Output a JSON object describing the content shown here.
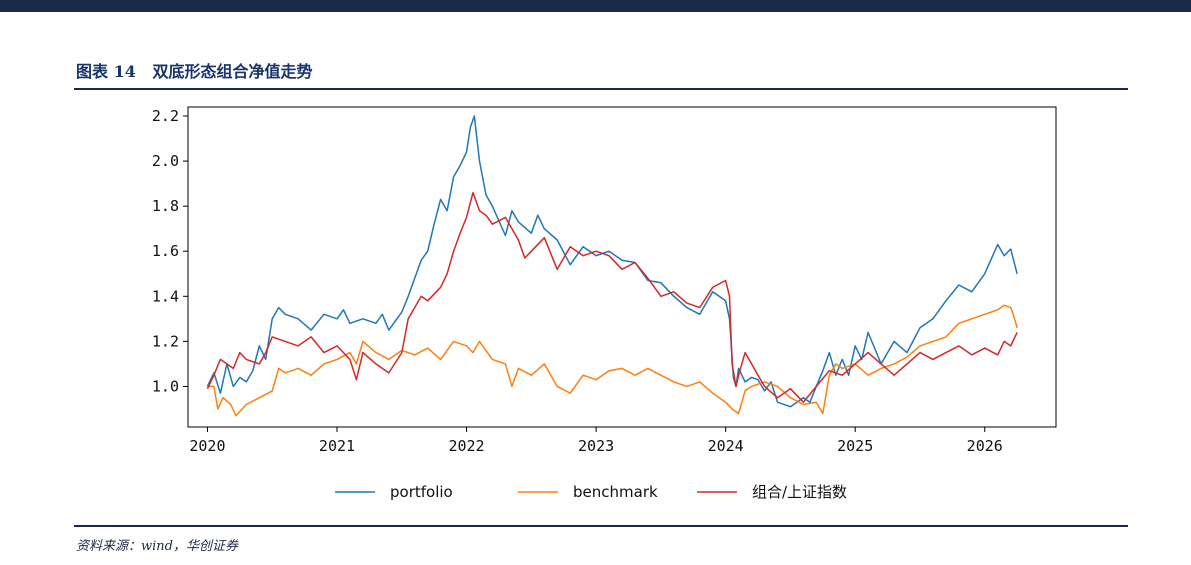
{
  "figure": {
    "title": "图表 14   双底形态组合净值走势",
    "source": "资料来源：wind，华创证券"
  },
  "chart_data": {
    "type": "line",
    "xlim": [
      2019.85,
      2026.55
    ],
    "ylim": [
      0.82,
      2.24
    ],
    "x_ticks": [
      2020,
      2021,
      2022,
      2023,
      2024,
      2025,
      2026
    ],
    "x_tick_labels": [
      "2020",
      "2021",
      "2022",
      "2023",
      "2024",
      "2025",
      "2026"
    ],
    "y_ticks": [
      1.0,
      1.2,
      1.4,
      1.6,
      1.8,
      2.0,
      2.2
    ],
    "y_tick_labels": [
      "1.0",
      "1.2",
      "1.4",
      "1.6",
      "1.8",
      "2.0",
      "2.2"
    ],
    "grid": false,
    "legend_position": "bottom",
    "series": [
      {
        "name": "portfolio",
        "color": "#1f77b4",
        "x": [
          2020.0,
          2020.05,
          2020.1,
          2020.15,
          2020.2,
          2020.25,
          2020.3,
          2020.35,
          2020.4,
          2020.45,
          2020.5,
          2020.55,
          2020.6,
          2020.7,
          2020.8,
          2020.9,
          2021.0,
          2021.05,
          2021.1,
          2021.2,
          2021.3,
          2021.35,
          2021.4,
          2021.5,
          2021.55,
          2021.6,
          2021.65,
          2021.7,
          2021.75,
          2021.8,
          2021.85,
          2021.9,
          2021.95,
          2022.0,
          2022.03,
          2022.06,
          2022.1,
          2022.15,
          2022.2,
          2022.3,
          2022.35,
          2022.4,
          2022.5,
          2022.55,
          2022.6,
          2022.7,
          2022.8,
          2022.9,
          2023.0,
          2023.1,
          2023.2,
          2023.3,
          2023.4,
          2023.5,
          2023.6,
          2023.7,
          2023.8,
          2023.9,
          2024.0,
          2024.03,
          2024.06,
          2024.08,
          2024.1,
          2024.15,
          2024.2,
          2024.25,
          2024.3,
          2024.35,
          2024.4,
          2024.5,
          2024.6,
          2024.65,
          2024.7,
          2024.75,
          2024.8,
          2024.85,
          2024.9,
          2024.95,
          2025.0,
          2025.05,
          2025.1,
          2025.2,
          2025.3,
          2025.4,
          2025.5,
          2025.6,
          2025.7,
          2025.8,
          2025.9,
          2026.0,
          2026.1,
          2026.15,
          2026.2,
          2026.25
        ],
        "values": [
          1.0,
          1.06,
          0.97,
          1.1,
          1.0,
          1.04,
          1.02,
          1.07,
          1.18,
          1.12,
          1.3,
          1.35,
          1.32,
          1.3,
          1.25,
          1.32,
          1.3,
          1.34,
          1.28,
          1.3,
          1.28,
          1.32,
          1.25,
          1.33,
          1.4,
          1.48,
          1.56,
          1.6,
          1.72,
          1.83,
          1.78,
          1.93,
          1.98,
          2.04,
          2.15,
          2.2,
          2.0,
          1.85,
          1.8,
          1.67,
          1.78,
          1.73,
          1.68,
          1.76,
          1.7,
          1.65,
          1.54,
          1.62,
          1.58,
          1.6,
          1.56,
          1.55,
          1.47,
          1.46,
          1.4,
          1.35,
          1.32,
          1.42,
          1.38,
          1.3,
          1.04,
          1.0,
          1.08,
          1.02,
          1.04,
          1.03,
          0.98,
          1.02,
          0.93,
          0.91,
          0.95,
          0.93,
          1.0,
          1.07,
          1.15,
          1.05,
          1.12,
          1.05,
          1.18,
          1.12,
          1.24,
          1.1,
          1.2,
          1.15,
          1.26,
          1.3,
          1.38,
          1.45,
          1.42,
          1.5,
          1.63,
          1.58,
          1.61,
          1.5
        ]
      },
      {
        "name": "benchmark",
        "color": "#ff7f0e",
        "x": [
          2020.0,
          2020.05,
          2020.08,
          2020.12,
          2020.18,
          2020.22,
          2020.3,
          2020.4,
          2020.5,
          2020.55,
          2020.6,
          2020.7,
          2020.8,
          2020.9,
          2021.0,
          2021.1,
          2021.15,
          2021.2,
          2021.3,
          2021.4,
          2021.5,
          2021.6,
          2021.7,
          2021.8,
          2021.9,
          2022.0,
          2022.05,
          2022.1,
          2022.2,
          2022.3,
          2022.35,
          2022.4,
          2022.5,
          2022.6,
          2022.7,
          2022.8,
          2022.9,
          2023.0,
          2023.1,
          2023.2,
          2023.3,
          2023.4,
          2023.5,
          2023.6,
          2023.7,
          2023.8,
          2023.9,
          2024.0,
          2024.05,
          2024.1,
          2024.15,
          2024.2,
          2024.3,
          2024.4,
          2024.5,
          2024.6,
          2024.7,
          2024.75,
          2024.8,
          2024.85,
          2024.9,
          2025.0,
          2025.1,
          2025.2,
          2025.3,
          2025.4,
          2025.5,
          2025.6,
          2025.7,
          2025.8,
          2025.9,
          2026.0,
          2026.1,
          2026.15,
          2026.2,
          2026.22,
          2026.25
        ],
        "values": [
          1.0,
          1.0,
          0.9,
          0.95,
          0.92,
          0.87,
          0.92,
          0.95,
          0.98,
          1.08,
          1.06,
          1.08,
          1.05,
          1.1,
          1.12,
          1.15,
          1.1,
          1.2,
          1.15,
          1.12,
          1.16,
          1.14,
          1.17,
          1.12,
          1.2,
          1.18,
          1.15,
          1.2,
          1.12,
          1.1,
          1.0,
          1.08,
          1.05,
          1.1,
          1.0,
          0.97,
          1.05,
          1.03,
          1.07,
          1.08,
          1.05,
          1.08,
          1.05,
          1.02,
          1.0,
          1.02,
          0.97,
          0.93,
          0.9,
          0.88,
          0.98,
          1.0,
          1.02,
          1.0,
          0.95,
          0.92,
          0.93,
          0.88,
          1.05,
          1.1,
          1.08,
          1.1,
          1.05,
          1.08,
          1.1,
          1.13,
          1.18,
          1.2,
          1.22,
          1.28,
          1.3,
          1.32,
          1.34,
          1.36,
          1.35,
          1.32,
          1.26
        ]
      },
      {
        "name": "组合/上证指数",
        "color": "#d62728",
        "x": [
          2020.0,
          2020.05,
          2020.1,
          2020.15,
          2020.2,
          2020.25,
          2020.3,
          2020.4,
          2020.45,
          2020.5,
          2020.6,
          2020.7,
          2020.8,
          2020.9,
          2021.0,
          2021.1,
          2021.15,
          2021.2,
          2021.3,
          2021.4,
          2021.5,
          2021.55,
          2021.6,
          2021.65,
          2021.7,
          2021.8,
          2021.85,
          2021.9,
          2021.95,
          2022.0,
          2022.05,
          2022.1,
          2022.15,
          2022.2,
          2022.3,
          2022.4,
          2022.45,
          2022.5,
          2022.6,
          2022.7,
          2022.8,
          2022.9,
          2023.0,
          2023.1,
          2023.2,
          2023.3,
          2023.4,
          2023.5,
          2023.6,
          2023.7,
          2023.8,
          2023.9,
          2024.0,
          2024.03,
          2024.05,
          2024.08,
          2024.1,
          2024.15,
          2024.2,
          2024.25,
          2024.3,
          2024.4,
          2024.5,
          2024.6,
          2024.7,
          2024.8,
          2024.9,
          2025.0,
          2025.1,
          2025.2,
          2025.3,
          2025.4,
          2025.5,
          2025.6,
          2025.7,
          2025.8,
          2025.9,
          2026.0,
          2026.1,
          2026.15,
          2026.2,
          2026.25
        ],
        "values": [
          0.99,
          1.05,
          1.12,
          1.1,
          1.08,
          1.15,
          1.12,
          1.1,
          1.15,
          1.22,
          1.2,
          1.18,
          1.22,
          1.15,
          1.18,
          1.12,
          1.03,
          1.15,
          1.1,
          1.06,
          1.15,
          1.3,
          1.35,
          1.4,
          1.38,
          1.44,
          1.5,
          1.6,
          1.68,
          1.75,
          1.86,
          1.78,
          1.76,
          1.72,
          1.75,
          1.65,
          1.57,
          1.6,
          1.66,
          1.52,
          1.62,
          1.58,
          1.6,
          1.58,
          1.52,
          1.55,
          1.48,
          1.4,
          1.42,
          1.37,
          1.35,
          1.44,
          1.47,
          1.4,
          1.1,
          1.0,
          1.05,
          1.15,
          1.1,
          1.05,
          1.0,
          0.95,
          0.99,
          0.93,
          1.0,
          1.07,
          1.05,
          1.1,
          1.15,
          1.1,
          1.05,
          1.1,
          1.15,
          1.12,
          1.15,
          1.18,
          1.14,
          1.17,
          1.14,
          1.2,
          1.18,
          1.24
        ]
      }
    ]
  }
}
